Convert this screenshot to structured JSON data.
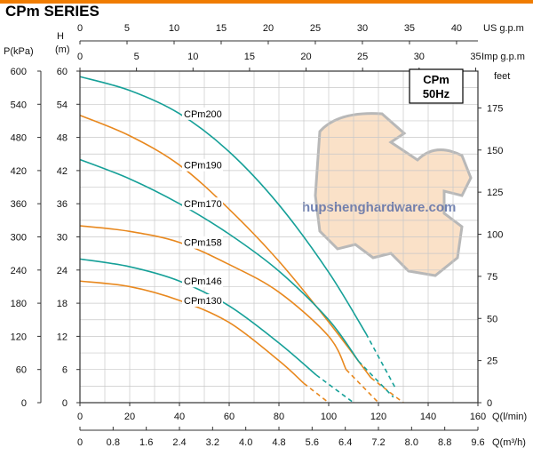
{
  "header": {
    "series_title": "CPm SERIES"
  },
  "colors": {
    "teal": "#16a098",
    "orange": "#e8881e",
    "grid": "#c8c8c8",
    "frame": "#333333",
    "topbar": "#f07c00"
  },
  "chart_data": {
    "type": "line",
    "title": "CPm",
    "subtitle": "50Hz",
    "watermark": "hupshenghardware.com",
    "axes": {
      "x_bottom": {
        "label": "Q(l/min)",
        "range": [
          0,
          160
        ],
        "ticks": [
          "0",
          "20",
          "40",
          "60",
          "80",
          "100",
          "120",
          "140",
          "160"
        ]
      },
      "x_m3h": {
        "label": "Q(m³/h)",
        "range": [
          0,
          9.6
        ],
        "ticks": [
          "0",
          "0.8",
          "1.6",
          "2.4",
          "3.2",
          "4.0",
          "4.8",
          "5.6",
          "6.4",
          "7.2",
          "8.0",
          "8.8",
          "9.6"
        ]
      },
      "x_usgpm": {
        "label": "US g.p.m",
        "range": [
          0,
          42.27
        ],
        "ticks": [
          "0",
          "5",
          "10",
          "15",
          "20",
          "25",
          "30",
          "35",
          "40"
        ]
      },
      "x_impgpm": {
        "label": "Imp g.p.m",
        "range": [
          0,
          35.2
        ],
        "ticks": [
          "0",
          "5",
          "10",
          "15",
          "20",
          "25",
          "30",
          "35"
        ]
      },
      "y_head": {
        "label_top": "H",
        "label_bottom": "(m)",
        "range": [
          0,
          60
        ],
        "ticks": [
          "0",
          "6",
          "12",
          "18",
          "24",
          "30",
          "36",
          "42",
          "48",
          "54",
          "60"
        ]
      },
      "y_pressure": {
        "label": "P(kPa)",
        "range": [
          0,
          600
        ],
        "ticks": [
          "0",
          "60",
          "120",
          "180",
          "240",
          "300",
          "360",
          "420",
          "480",
          "540",
          "600"
        ]
      },
      "y_feet": {
        "label": "feet",
        "range": [
          0,
          196.85
        ],
        "ticks": [
          "0",
          "25",
          "50",
          "75",
          "100",
          "125",
          "150",
          "175"
        ]
      }
    },
    "grid": true,
    "series": [
      {
        "name": "CPm200",
        "color": "#16a098",
        "x": [
          0,
          20,
          40,
          60,
          80,
          100,
          115
        ],
        "y": [
          59,
          56.5,
          52.3,
          45.4,
          35.8,
          23.6,
          12.5
        ],
        "dash_x": [
          115,
          127
        ],
        "dash_y": [
          12.5,
          2.5
        ]
      },
      {
        "name": "CPm190",
        "color": "#e8881e",
        "x": [
          0,
          20,
          40,
          60,
          80,
          100,
          117
        ],
        "y": [
          52,
          48.3,
          43,
          35,
          25.6,
          14.6,
          4.5
        ],
        "dash_x": [
          117,
          130
        ],
        "dash_y": [
          4.5,
          0
        ]
      },
      {
        "name": "CPm170",
        "color": "#16a098",
        "x": [
          0,
          20,
          40,
          60,
          80,
          100,
          112
        ],
        "y": [
          44,
          40.5,
          36,
          30.5,
          23.8,
          15,
          7.5
        ],
        "dash_x": [
          112,
          126
        ],
        "dash_y": [
          7.5,
          1
        ]
      },
      {
        "name": "CPm158",
        "color": "#e8881e",
        "x": [
          0,
          20,
          40,
          60,
          80,
          100,
          107
        ],
        "y": [
          32,
          31,
          29,
          25,
          20,
          12,
          6
        ],
        "dash_x": [
          107,
          120
        ],
        "dash_y": [
          6,
          0
        ]
      },
      {
        "name": "CPm146",
        "color": "#16a098",
        "x": [
          0,
          20,
          40,
          60,
          80,
          95
        ],
        "y": [
          26,
          24.6,
          22,
          17.5,
          10.8,
          5
        ],
        "dash_x": [
          95,
          110
        ],
        "dash_y": [
          5,
          0
        ]
      },
      {
        "name": "CPm130",
        "color": "#e8881e",
        "x": [
          0,
          20,
          40,
          60,
          80,
          90
        ],
        "y": [
          22,
          21,
          18.5,
          14.5,
          7.6,
          3.5
        ],
        "dash_x": [
          90,
          100
        ],
        "dash_y": [
          3.5,
          0
        ]
      }
    ]
  }
}
